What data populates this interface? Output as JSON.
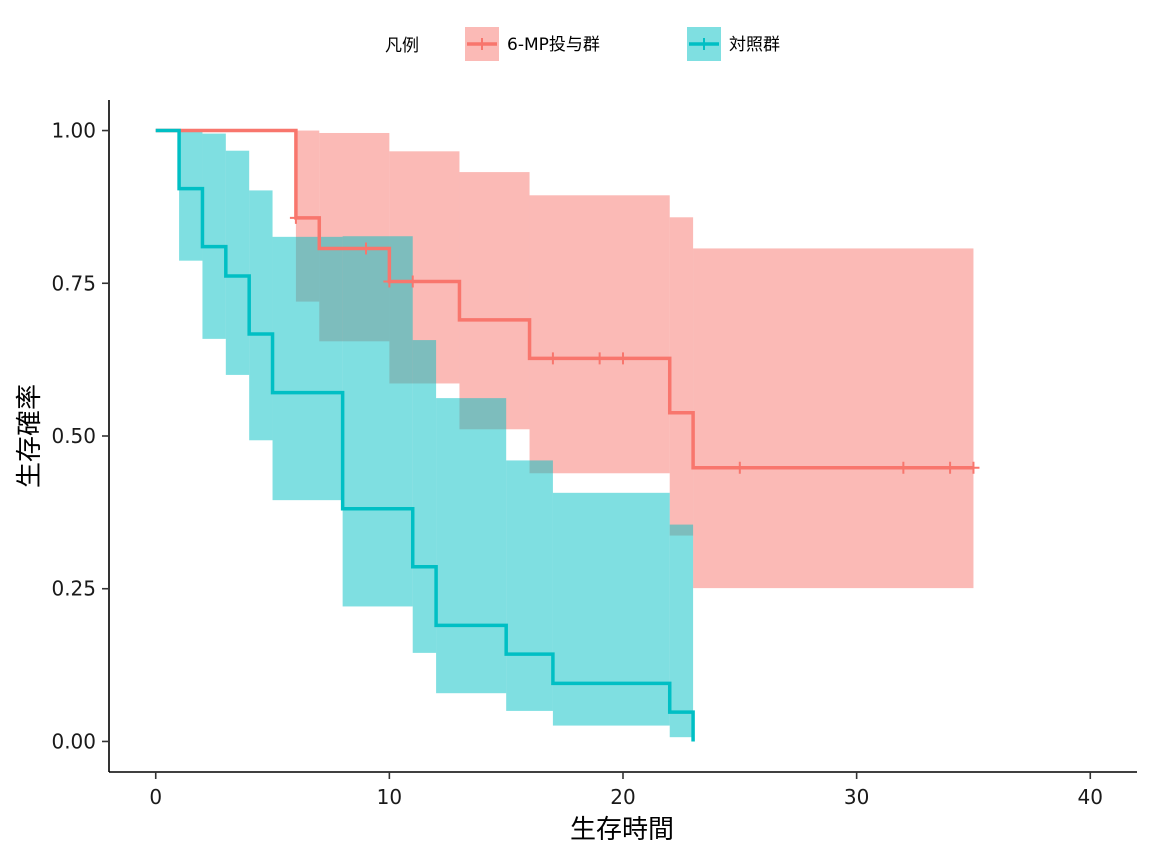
{
  "chart_data": {
    "type": "line",
    "subtype": "kaplan-meier-step",
    "xlabel": "生存時間",
    "ylabel": "生存確率",
    "xlim": [
      -2,
      42
    ],
    "ylim": [
      -0.05,
      1.05
    ],
    "x_ticks": [
      0,
      10,
      20,
      30,
      40
    ],
    "y_ticks": [
      0,
      0.25,
      0.5,
      0.75,
      1.0
    ],
    "x_tick_labels": [
      "0",
      "10",
      "20",
      "30",
      "40"
    ],
    "y_tick_labels": [
      "0.00",
      "0.25",
      "0.50",
      "0.75",
      "1.00"
    ],
    "grid": false,
    "legend": {
      "title": "凡例",
      "position": "top"
    },
    "series": [
      {
        "name": "6-MP投与群",
        "line_color": "#F8766D",
        "band_color": "#F8766D",
        "times": [
          0,
          6,
          7,
          10,
          13,
          16,
          22,
          23,
          35
        ],
        "survival": [
          1.0,
          0.857,
          0.807,
          0.753,
          0.69,
          0.627,
          0.538,
          0.448,
          0.448
        ],
        "lower": [
          1.0,
          0.72,
          0.655,
          0.586,
          0.511,
          0.439,
          0.337,
          0.251,
          0.251
        ],
        "upper": [
          1.0,
          1.0,
          0.996,
          0.966,
          0.932,
          0.894,
          0.858,
          0.807,
          0.807
        ],
        "censor_times": [
          6,
          9,
          10,
          11,
          17,
          19,
          20,
          25,
          32,
          34,
          35
        ]
      },
      {
        "name": "対照群",
        "line_color": "#00BFC4",
        "band_color": "#00BFC4",
        "times": [
          0,
          1,
          2,
          3,
          4,
          5,
          8,
          11,
          12,
          15,
          17,
          22,
          23
        ],
        "survival": [
          1.0,
          0.905,
          0.81,
          0.762,
          0.667,
          0.571,
          0.381,
          0.286,
          0.19,
          0.143,
          0.095,
          0.048,
          0.0
        ],
        "lower": [
          1.0,
          0.787,
          0.659,
          0.6,
          0.493,
          0.395,
          0.221,
          0.145,
          0.079,
          0.05,
          0.026,
          0.007,
          0.0
        ],
        "upper": [
          1.0,
          1.0,
          0.995,
          0.967,
          0.902,
          0.826,
          0.827,
          0.657,
          0.562,
          0.46,
          0.407,
          0.355,
          0.324
        ],
        "censor_times": []
      }
    ]
  }
}
